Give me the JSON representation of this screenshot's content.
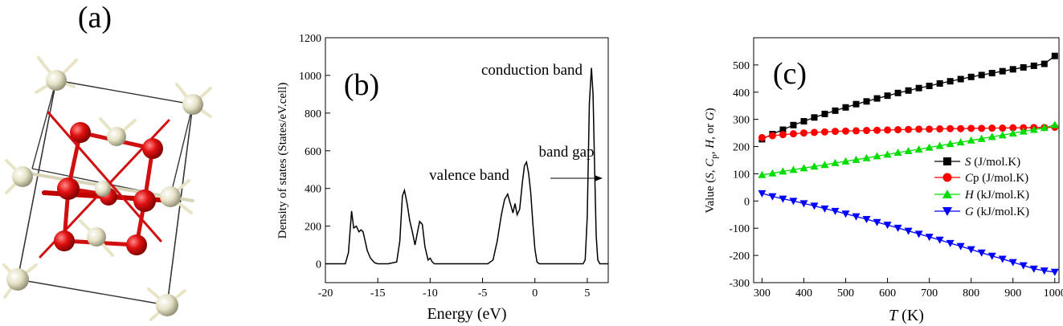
{
  "panels": {
    "a": {
      "label": "(a)"
    },
    "b": {
      "label": "(b)"
    },
    "c": {
      "label": "(c)"
    }
  },
  "chart_data": [
    {
      "type": "line",
      "ylabel": "Density of states (States/eV.cell)",
      "xlabel": "Energy (eV)",
      "xlim": [
        -20,
        7
      ],
      "ylim": [
        -100,
        1200
      ],
      "xticks": [
        -20,
        -15,
        -10,
        -5,
        0,
        5
      ],
      "yticks": [
        0,
        200,
        400,
        600,
        800,
        1000,
        1200
      ],
      "annotations": {
        "conduction": "conduction band",
        "valence": "valence band",
        "gap": "band gap"
      },
      "x": [
        -20,
        -18.1,
        -17.8,
        -17.5,
        -17.3,
        -17.05,
        -16.8,
        -16.6,
        -16.4,
        -16.2,
        -16.0,
        -15.7,
        -15.3,
        -15.0,
        -14.6,
        -14.0,
        -13.2,
        -12.9,
        -12.65,
        -12.45,
        -12.2,
        -11.95,
        -11.7,
        -11.45,
        -11.2,
        -11.0,
        -10.75,
        -10.5,
        -10.2,
        -10.0,
        -9.8,
        -9.6,
        -9.2,
        -7.0,
        -4.5,
        -4.0,
        -3.6,
        -3.2,
        -2.9,
        -2.6,
        -2.3,
        -2.1,
        -1.9,
        -1.7,
        -1.45,
        -1.2,
        -1.0,
        -0.8,
        -0.6,
        -0.4,
        -0.2,
        0.0,
        0.2,
        0.4,
        4.6,
        4.8,
        5.0,
        5.2,
        5.4,
        5.55,
        5.7,
        5.85,
        6.0,
        6.2,
        7.0
      ],
      "y": [
        0,
        0,
        60,
        280,
        190,
        200,
        170,
        180,
        170,
        120,
        70,
        30,
        5,
        0,
        0,
        0,
        10,
        120,
        360,
        390,
        320,
        230,
        170,
        100,
        170,
        225,
        210,
        90,
        20,
        30,
        10,
        0,
        0,
        0,
        0,
        20,
        120,
        260,
        340,
        370,
        310,
        270,
        320,
        260,
        290,
        430,
        520,
        540,
        480,
        380,
        220,
        80,
        10,
        0,
        0,
        20,
        250,
        850,
        1040,
        900,
        500,
        150,
        20,
        0,
        0
      ]
    },
    {
      "type": "line",
      "ylabel": "Value (S, Cp, H, or G)",
      "xlabel": "T (K)",
      "xlim": [
        280,
        1010
      ],
      "ylim": [
        -300,
        600
      ],
      "xticks": [
        300,
        400,
        500,
        600,
        700,
        800,
        900,
        1000
      ],
      "yticks": [
        -300,
        -200,
        -100,
        0,
        100,
        200,
        300,
        400,
        500
      ],
      "x": [
        300,
        325,
        350,
        375,
        400,
        425,
        450,
        475,
        500,
        525,
        550,
        575,
        600,
        625,
        650,
        675,
        700,
        725,
        750,
        775,
        800,
        825,
        850,
        875,
        900,
        925,
        950,
        975,
        1000
      ],
      "series": [
        {
          "name": "S (J/mol.K)",
          "marker": "square",
          "color": "#000000",
          "values": [
            227,
            246,
            262,
            279,
            293,
            307,
            320,
            332,
            344,
            356,
            366,
            377,
            387,
            397,
            406,
            415,
            423,
            432,
            440,
            448,
            456,
            463,
            470,
            477,
            484,
            491,
            497,
            504,
            533
          ]
        },
        {
          "name": "Cp (J/mol.K)",
          "marker": "circle",
          "color": "#ff0000",
          "values": [
            233,
            240,
            244,
            247,
            250,
            252,
            254,
            256,
            257,
            258,
            259,
            260,
            261,
            262,
            263,
            264,
            264,
            265,
            266,
            266,
            267,
            267,
            268,
            268,
            269,
            269,
            270,
            270,
            271
          ]
        },
        {
          "name": "H (kJ/mol.K)",
          "marker": "triangle-up",
          "color": "#00dd00",
          "values": [
            96,
            102,
            109,
            115,
            121,
            127,
            133,
            140,
            146,
            152,
            158,
            165,
            171,
            178,
            184,
            190,
            197,
            203,
            210,
            216,
            223,
            229,
            236,
            242,
            249,
            256,
            262,
            269,
            280
          ]
        },
        {
          "name": "G (kJ/mol.K)",
          "marker": "triangle-down",
          "color": "#0000ff",
          "values": [
            28,
            17,
            8,
            0,
            -9,
            -18,
            -28,
            -37,
            -47,
            -57,
            -67,
            -78,
            -88,
            -99,
            -110,
            -121,
            -132,
            -143,
            -155,
            -166,
            -178,
            -190,
            -202,
            -213,
            -225,
            -237,
            -249,
            -256,
            -261
          ]
        }
      ],
      "legend": {
        "placement": "right",
        "S": {
          "italic": "S",
          "rest": " (J/mol.K)"
        },
        "Cp": {
          "italic": "C",
          "rest": "p (J/mol.K)"
        },
        "H": {
          "italic": "H",
          "rest": " (kJ/mol.K)"
        },
        "G": {
          "italic": "G",
          "rest": " (kJ/mol.K)"
        }
      },
      "ylabel_parts": {
        "pre": "Value (",
        "S": "S",
        "c1": ", ",
        "C": "C",
        "sub": "p",
        "c2": ", ",
        "H": "H",
        "c3": ", or ",
        "G": "G",
        "post": ")"
      },
      "xlabel_parts": {
        "T": "T",
        "rest": " (K)"
      }
    }
  ],
  "colors": {
    "atom_red": "#e01010",
    "atom_cream": "#ece8cc"
  }
}
